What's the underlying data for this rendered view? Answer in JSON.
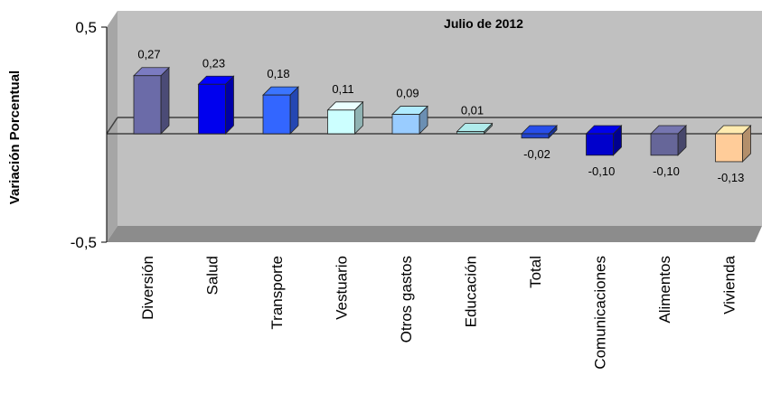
{
  "chart_data": {
    "type": "bar",
    "title": "Julio de 2012",
    "xlabel": "",
    "ylabel": "Variación Porcentual",
    "ylim": [
      -0.5,
      0.5
    ],
    "yticks": [
      "0,5",
      "-0,5"
    ],
    "grid": false,
    "legend": "none",
    "categories": [
      "Diversión",
      "Salud",
      "Transporte",
      "Vestuario",
      "Otros gastos",
      "Educación",
      "Total",
      "Comunicaciones",
      "Alimentos",
      "Vivienda"
    ],
    "values": [
      0.27,
      0.23,
      0.18,
      0.11,
      0.09,
      0.01,
      -0.02,
      -0.1,
      -0.1,
      -0.13
    ],
    "value_labels": [
      "0,27",
      "0,23",
      "0,18",
      "0,11",
      "0,09",
      "0,01",
      "-0,02",
      "-0,10",
      "-0,10",
      "-0,13"
    ],
    "colors": [
      "#6b6ba8",
      "#0000ee",
      "#3366ff",
      "#ccffff",
      "#99ccff",
      "#99cccc",
      "#2244cc",
      "#0000cc",
      "#666699",
      "#ffcc99"
    ],
    "background_color": "#c0c0c0"
  }
}
